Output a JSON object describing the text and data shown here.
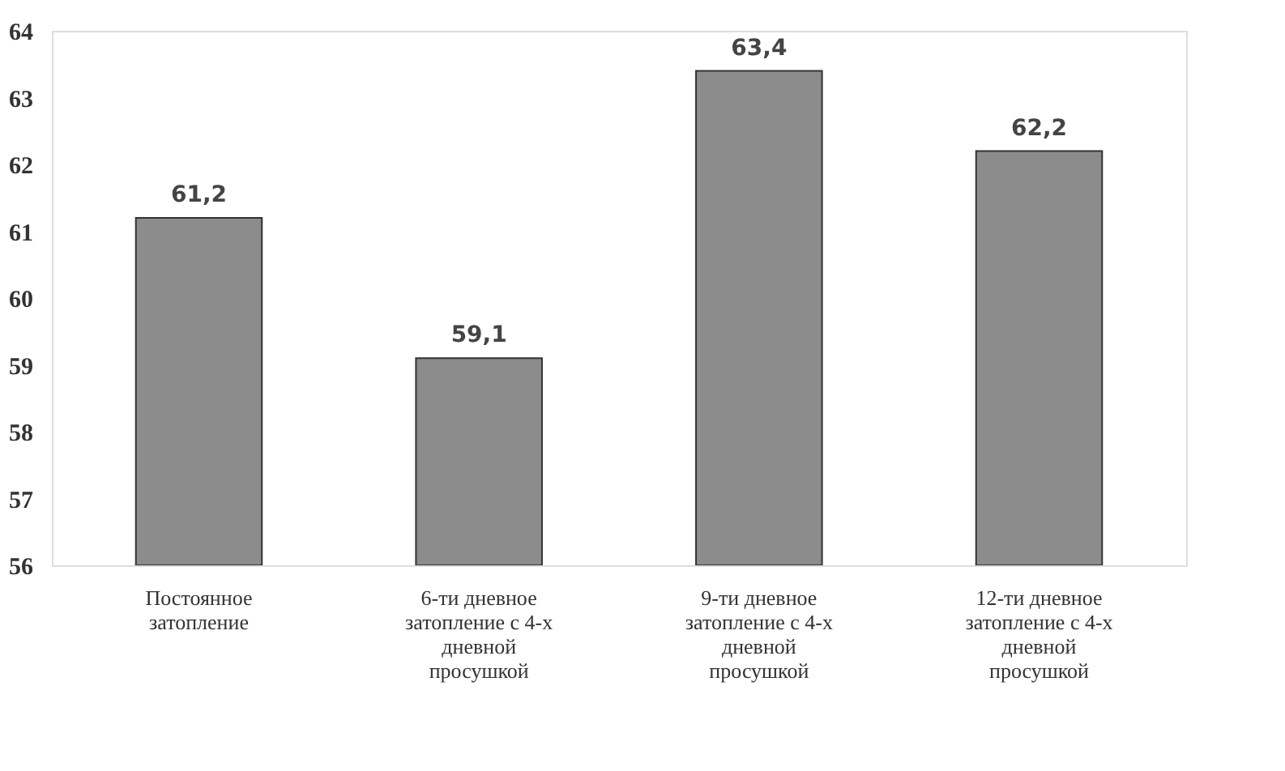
{
  "chart_data": {
    "type": "bar",
    "categories": [
      "Постоянное\nзатопление",
      "6-ти дневное\nзатопление с 4-х\nдневной\nпросушкой",
      "9-ти дневное\nзатопление с 4-х\nдневной\nпросушкой",
      "12-ти дневное\nзатопление с 4-х\nдневной\nпросушкой"
    ],
    "values": [
      61.2,
      59.1,
      63.4,
      62.2
    ],
    "value_labels": [
      "61,2",
      "59,1",
      "63,4",
      "62,2"
    ],
    "color": "#8c8c8c",
    "ylim": [
      56,
      64
    ],
    "yticks": [
      56,
      57,
      58,
      59,
      60,
      61,
      62,
      63,
      64
    ],
    "grid": false
  }
}
